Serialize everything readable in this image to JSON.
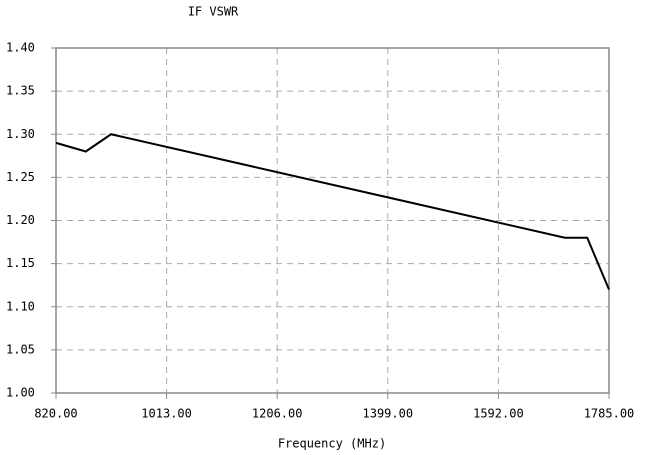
{
  "chart_data": {
    "type": "line",
    "title": "IF VSWR",
    "xlabel": "Frequency (MHz)",
    "x": [
      820,
      872,
      916,
      1708,
      1747,
      1785
    ],
    "series": [
      {
        "name": "VSWR",
        "color": "#000000",
        "values": [
          1.29,
          1.28,
          1.3,
          1.18,
          1.18,
          1.12
        ]
      }
    ],
    "xlim": [
      820,
      1785
    ],
    "xticks": [
      {
        "value": 820,
        "label": "820.00"
      },
      {
        "value": 1013,
        "label": "1013.00"
      },
      {
        "value": 1206,
        "label": "1206.00"
      },
      {
        "value": 1399,
        "label": "1399.00"
      },
      {
        "value": 1592,
        "label": "1592.00"
      },
      {
        "value": 1785,
        "label": "1785.00"
      }
    ],
    "ylim": [
      1.0,
      1.4
    ],
    "yticks": [
      {
        "value": 1.0,
        "label": "1.00"
      },
      {
        "value": 1.05,
        "label": "1.05"
      },
      {
        "value": 1.1,
        "label": "1.10"
      },
      {
        "value": 1.15,
        "label": "1.15"
      },
      {
        "value": 1.2,
        "label": "1.20"
      },
      {
        "value": 1.25,
        "label": "1.25"
      },
      {
        "value": 1.3,
        "label": "1.30"
      },
      {
        "value": 1.35,
        "label": "1.35"
      },
      {
        "value": 1.4,
        "label": "1.40"
      }
    ],
    "grid": true
  }
}
